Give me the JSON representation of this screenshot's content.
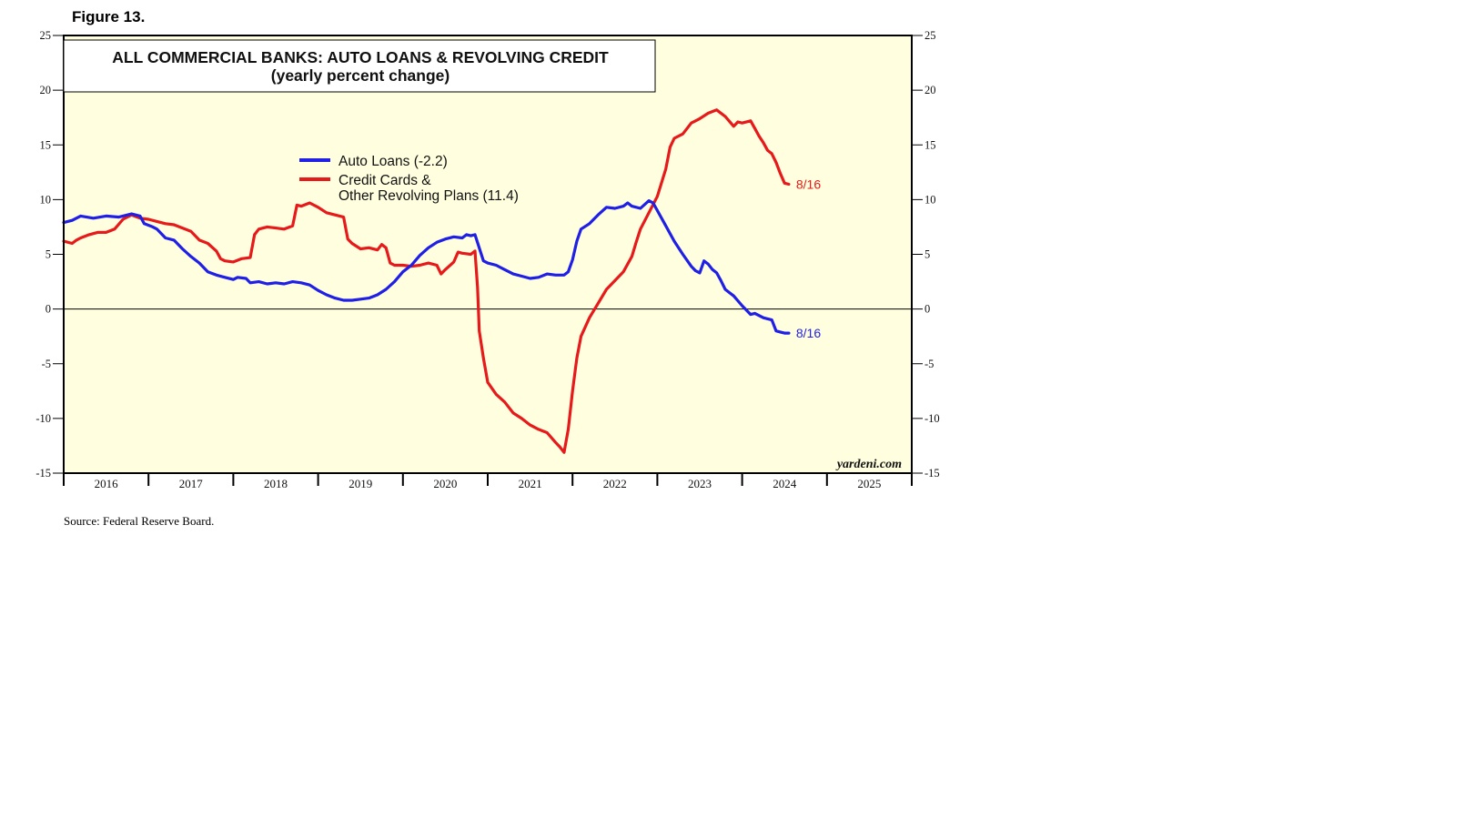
{
  "figure_label": "Figure 13.",
  "source": "Source: Federal Reserve Board.",
  "watermark": "yardeni.com",
  "colors": {
    "plot_bg": "#FFFFE0",
    "auto": "#1F1FE6",
    "credit": "#E61A1A"
  },
  "chart_data": {
    "type": "line",
    "title": "ALL COMMERCIAL BANKS: AUTO LOANS & REVOLVING CREDIT",
    "subtitle": "(yearly percent change)",
    "xlabel": "",
    "ylabel": "",
    "ylim": [
      -15,
      25
    ],
    "xlim": [
      2015.5,
      2025.5
    ],
    "yticks": [
      -15,
      -10,
      -5,
      0,
      5,
      10,
      15,
      20,
      25
    ],
    "ytick_labels": [
      "-15",
      "-10",
      "-5",
      "0",
      "5",
      "10",
      "15",
      "20",
      "25"
    ],
    "xtick_labels": [
      "2016",
      "2017",
      "2018",
      "2019",
      "2020",
      "2021",
      "2022",
      "2023",
      "2024",
      "2025"
    ],
    "grid": false,
    "zero_line": true,
    "legend_position": "top-left",
    "series": [
      {
        "name": "Auto Loans (-2.2)",
        "end_label": "8/16",
        "values_xy": [
          [
            2015.5,
            7.9
          ],
          [
            2015.6,
            8.1
          ],
          [
            2015.7,
            8.5
          ],
          [
            2015.85,
            8.3
          ],
          [
            2016.0,
            8.5
          ],
          [
            2016.15,
            8.4
          ],
          [
            2016.3,
            8.7
          ],
          [
            2016.4,
            8.5
          ],
          [
            2016.45,
            7.8
          ],
          [
            2016.55,
            7.5
          ],
          [
            2016.6,
            7.3
          ],
          [
            2016.7,
            6.5
          ],
          [
            2016.8,
            6.3
          ],
          [
            2016.9,
            5.5
          ],
          [
            2017.0,
            4.8
          ],
          [
            2017.1,
            4.2
          ],
          [
            2017.2,
            3.4
          ],
          [
            2017.3,
            3.1
          ],
          [
            2017.4,
            2.9
          ],
          [
            2017.5,
            2.7
          ],
          [
            2017.55,
            2.9
          ],
          [
            2017.65,
            2.8
          ],
          [
            2017.7,
            2.4
          ],
          [
            2017.8,
            2.5
          ],
          [
            2017.9,
            2.3
          ],
          [
            2018.0,
            2.4
          ],
          [
            2018.1,
            2.3
          ],
          [
            2018.2,
            2.5
          ],
          [
            2018.3,
            2.4
          ],
          [
            2018.4,
            2.2
          ],
          [
            2018.5,
            1.7
          ],
          [
            2018.6,
            1.3
          ],
          [
            2018.7,
            1.0
          ],
          [
            2018.8,
            0.8
          ],
          [
            2018.9,
            0.8
          ],
          [
            2019.0,
            0.9
          ],
          [
            2019.1,
            1.0
          ],
          [
            2019.2,
            1.3
          ],
          [
            2019.3,
            1.8
          ],
          [
            2019.4,
            2.5
          ],
          [
            2019.5,
            3.4
          ],
          [
            2019.6,
            4.0
          ],
          [
            2019.7,
            4.9
          ],
          [
            2019.8,
            5.6
          ],
          [
            2019.9,
            6.1
          ],
          [
            2020.0,
            6.4
          ],
          [
            2020.1,
            6.6
          ],
          [
            2020.2,
            6.5
          ],
          [
            2020.25,
            6.8
          ],
          [
            2020.3,
            6.7
          ],
          [
            2020.35,
            6.8
          ],
          [
            2020.45,
            4.4
          ],
          [
            2020.5,
            4.2
          ],
          [
            2020.6,
            4.0
          ],
          [
            2020.7,
            3.6
          ],
          [
            2020.8,
            3.2
          ],
          [
            2020.9,
            3.0
          ],
          [
            2021.0,
            2.8
          ],
          [
            2021.1,
            2.9
          ],
          [
            2021.2,
            3.2
          ],
          [
            2021.3,
            3.1
          ],
          [
            2021.4,
            3.1
          ],
          [
            2021.45,
            3.4
          ],
          [
            2021.5,
            4.5
          ],
          [
            2021.55,
            6.2
          ],
          [
            2021.6,
            7.3
          ],
          [
            2021.7,
            7.8
          ],
          [
            2021.8,
            8.6
          ],
          [
            2021.9,
            9.3
          ],
          [
            2022.0,
            9.2
          ],
          [
            2022.1,
            9.4
          ],
          [
            2022.15,
            9.7
          ],
          [
            2022.2,
            9.4
          ],
          [
            2022.3,
            9.2
          ],
          [
            2022.4,
            9.9
          ],
          [
            2022.45,
            9.7
          ],
          [
            2022.5,
            9.0
          ],
          [
            2022.6,
            7.6
          ],
          [
            2022.7,
            6.2
          ],
          [
            2022.8,
            5.0
          ],
          [
            2022.9,
            3.9
          ],
          [
            2022.95,
            3.5
          ],
          [
            2023.0,
            3.3
          ],
          [
            2023.05,
            4.4
          ],
          [
            2023.1,
            4.1
          ],
          [
            2023.15,
            3.6
          ],
          [
            2023.2,
            3.3
          ],
          [
            2023.25,
            2.6
          ],
          [
            2023.3,
            1.8
          ],
          [
            2023.35,
            1.5
          ],
          [
            2023.4,
            1.2
          ],
          [
            2023.5,
            0.3
          ],
          [
            2023.6,
            -0.5
          ],
          [
            2023.65,
            -0.4
          ],
          [
            2023.7,
            -0.6
          ],
          [
            2023.75,
            -0.8
          ],
          [
            2023.8,
            -0.9
          ],
          [
            2023.85,
            -1.0
          ],
          [
            2023.9,
            -2.0
          ],
          [
            2023.95,
            -2.1
          ],
          [
            2024.0,
            -2.2
          ],
          [
            2024.05,
            -2.2
          ]
        ]
      },
      {
        "name": "Credit Cards & Other Revolving Plans (11.4)",
        "end_label": "8/16",
        "values_xy": [
          [
            2015.5,
            6.2
          ],
          [
            2015.6,
            6.0
          ],
          [
            2015.65,
            6.3
          ],
          [
            2015.7,
            6.5
          ],
          [
            2015.8,
            6.8
          ],
          [
            2015.9,
            7.0
          ],
          [
            2016.0,
            7.0
          ],
          [
            2016.1,
            7.3
          ],
          [
            2016.2,
            8.2
          ],
          [
            2016.3,
            8.6
          ],
          [
            2016.4,
            8.3
          ],
          [
            2016.5,
            8.2
          ],
          [
            2016.6,
            8.0
          ],
          [
            2016.7,
            7.8
          ],
          [
            2016.8,
            7.7
          ],
          [
            2016.9,
            7.4
          ],
          [
            2017.0,
            7.1
          ],
          [
            2017.1,
            6.3
          ],
          [
            2017.2,
            6.0
          ],
          [
            2017.3,
            5.3
          ],
          [
            2017.35,
            4.6
          ],
          [
            2017.4,
            4.4
          ],
          [
            2017.5,
            4.3
          ],
          [
            2017.6,
            4.6
          ],
          [
            2017.7,
            4.7
          ],
          [
            2017.75,
            6.8
          ],
          [
            2017.8,
            7.3
          ],
          [
            2017.9,
            7.5
          ],
          [
            2018.0,
            7.4
          ],
          [
            2018.1,
            7.3
          ],
          [
            2018.2,
            7.6
          ],
          [
            2018.25,
            9.5
          ],
          [
            2018.3,
            9.4
          ],
          [
            2018.4,
            9.7
          ],
          [
            2018.5,
            9.3
          ],
          [
            2018.6,
            8.8
          ],
          [
            2018.7,
            8.6
          ],
          [
            2018.8,
            8.4
          ],
          [
            2018.85,
            6.4
          ],
          [
            2018.9,
            6.0
          ],
          [
            2019.0,
            5.5
          ],
          [
            2019.1,
            5.6
          ],
          [
            2019.2,
            5.4
          ],
          [
            2019.25,
            5.9
          ],
          [
            2019.3,
            5.6
          ],
          [
            2019.35,
            4.2
          ],
          [
            2019.4,
            4.0
          ],
          [
            2019.5,
            4.0
          ],
          [
            2019.6,
            3.9
          ],
          [
            2019.7,
            4.0
          ],
          [
            2019.8,
            4.2
          ],
          [
            2019.9,
            4.0
          ],
          [
            2019.95,
            3.2
          ],
          [
            2020.0,
            3.6
          ],
          [
            2020.1,
            4.3
          ],
          [
            2020.15,
            5.2
          ],
          [
            2020.2,
            5.1
          ],
          [
            2020.3,
            5.0
          ],
          [
            2020.35,
            5.3
          ],
          [
            2020.38,
            2.0
          ],
          [
            2020.4,
            -2.0
          ],
          [
            2020.45,
            -4.5
          ],
          [
            2020.5,
            -6.7
          ],
          [
            2020.6,
            -7.8
          ],
          [
            2020.7,
            -8.5
          ],
          [
            2020.8,
            -9.5
          ],
          [
            2020.9,
            -10.0
          ],
          [
            2021.0,
            -10.6
          ],
          [
            2021.1,
            -11.0
          ],
          [
            2021.2,
            -11.3
          ],
          [
            2021.3,
            -12.2
          ],
          [
            2021.35,
            -12.6
          ],
          [
            2021.4,
            -13.1
          ],
          [
            2021.45,
            -11.0
          ],
          [
            2021.5,
            -7.5
          ],
          [
            2021.55,
            -4.5
          ],
          [
            2021.6,
            -2.5
          ],
          [
            2021.7,
            -0.8
          ],
          [
            2021.8,
            0.5
          ],
          [
            2021.9,
            1.8
          ],
          [
            2022.0,
            2.6
          ],
          [
            2022.1,
            3.4
          ],
          [
            2022.2,
            4.8
          ],
          [
            2022.25,
            6.1
          ],
          [
            2022.3,
            7.3
          ],
          [
            2022.4,
            8.8
          ],
          [
            2022.5,
            10.3
          ],
          [
            2022.6,
            12.8
          ],
          [
            2022.65,
            14.8
          ],
          [
            2022.7,
            15.6
          ],
          [
            2022.8,
            16.0
          ],
          [
            2022.9,
            17.0
          ],
          [
            2023.0,
            17.4
          ],
          [
            2023.1,
            17.9
          ],
          [
            2023.2,
            18.2
          ],
          [
            2023.3,
            17.6
          ],
          [
            2023.4,
            16.7
          ],
          [
            2023.45,
            17.1
          ],
          [
            2023.5,
            17.0
          ],
          [
            2023.6,
            17.2
          ],
          [
            2023.65,
            16.5
          ],
          [
            2023.7,
            15.8
          ],
          [
            2023.75,
            15.2
          ],
          [
            2023.8,
            14.5
          ],
          [
            2023.85,
            14.2
          ],
          [
            2023.9,
            13.4
          ],
          [
            2023.95,
            12.4
          ],
          [
            2024.0,
            11.5
          ],
          [
            2024.05,
            11.4
          ]
        ]
      }
    ]
  }
}
